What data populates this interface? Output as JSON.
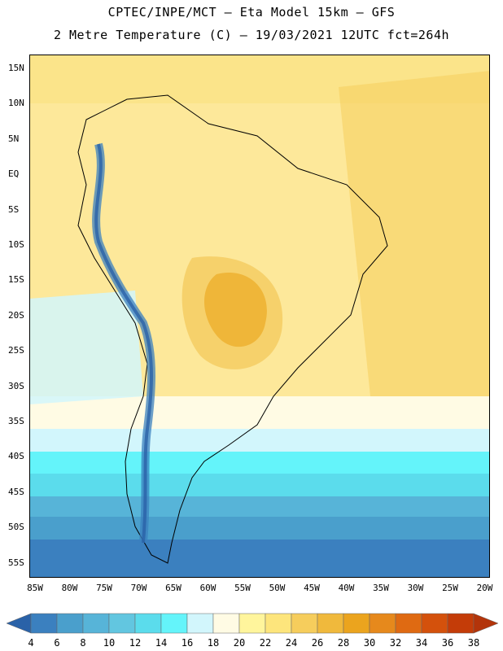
{
  "title_line1": "CPTEC/INPE/MCT –  Eta Model 15km – GFS",
  "title_line2": "2 Metre Temperature (C) – 19/03/2021 12UTC fct=264h",
  "lat_labels": [
    "15N",
    "10N",
    "5N",
    "EQ",
    "5S",
    "10S",
    "15S",
    "20S",
    "25S",
    "30S",
    "35S",
    "40S",
    "45S",
    "50S",
    "55S"
  ],
  "lon_labels": [
    "85W",
    "80W",
    "75W",
    "70W",
    "65W",
    "60W",
    "55W",
    "50W",
    "45W",
    "40W",
    "35W",
    "30W",
    "25W",
    "20W"
  ],
  "colorbar": {
    "labels": [
      "4",
      "6",
      "8",
      "10",
      "12",
      "14",
      "16",
      "18",
      "20",
      "22",
      "24",
      "26",
      "28",
      "30",
      "32",
      "34",
      "36",
      "38"
    ],
    "colors": [
      "#2a62a8",
      "#3b80bf",
      "#4a9fcc",
      "#57b4d8",
      "#62c6e0",
      "#5bdcec",
      "#64f4fa",
      "#d2f6fc",
      "#fffbe4",
      "#fff59c",
      "#fde57c",
      "#f6cd5c",
      "#f0b93c",
      "#eba41e",
      "#e6891c",
      "#df6a12",
      "#d4510c",
      "#c43c08",
      "#b3340a"
    ]
  },
  "legend": {
    "map_type": "temperature-shaded-map",
    "region": "South America"
  }
}
